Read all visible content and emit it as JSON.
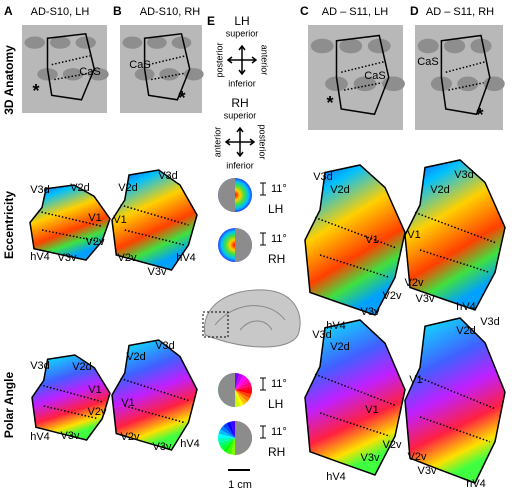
{
  "figure": {
    "row_labels": [
      "3D Anatomy",
      "Eccentricity",
      "Polar Angle"
    ],
    "panels": [
      {
        "letter": "A",
        "title": "AD-S10, LH",
        "sulcus": "CaS",
        "marker": "*",
        "eccentricity_regions": [
          "V3d",
          "V2d",
          "V1",
          "V2v",
          "V3v",
          "hV4"
        ],
        "polar_angle_regions": [
          "V3d",
          "V2d",
          "V1",
          "V2v",
          "V3v",
          "hV4"
        ]
      },
      {
        "letter": "B",
        "title": "AD-S10, RH",
        "sulcus": "CaS",
        "marker": "*",
        "eccentricity_regions": [
          "V3d",
          "V2d",
          "V1",
          "V2v",
          "V3v",
          "hV4"
        ],
        "polar_angle_regions": [
          "V3d",
          "V2d",
          "V1",
          "V2v",
          "V3v",
          "hV4"
        ]
      },
      {
        "letter": "C",
        "title": "AD – S11, LH",
        "sulcus": "CaS",
        "marker": "*",
        "eccentricity_regions": [
          "V3d",
          "V2d",
          "V1",
          "V2v",
          "V3v",
          "hV4"
        ],
        "polar_angle_regions": [
          "V3d",
          "V2d",
          "V1",
          "V2v",
          "V3v",
          "hV4"
        ]
      },
      {
        "letter": "D",
        "title": "AD – S11, RH",
        "sulcus": "CaS",
        "marker": "*",
        "eccentricity_regions": [
          "V3d",
          "V2d",
          "V1",
          "V2v",
          "V3v",
          "hV4"
        ],
        "polar_angle_regions": [
          "V3d",
          "V2d",
          "V1",
          "V2v",
          "V3v",
          "hV4"
        ]
      }
    ],
    "panel_e": {
      "letter": "E",
      "orientation": [
        {
          "hemisphere": "LH",
          "up": "superior",
          "left": "posterior",
          "right": "anterior",
          "down": "inferior"
        },
        {
          "hemisphere": "RH",
          "up": "superior",
          "left": "anterior",
          "right": "posterior",
          "down": "inferior"
        }
      ],
      "legend": [
        {
          "size": "11°",
          "hemisphere": "LH"
        },
        {
          "size": "11°",
          "hemisphere": "RH"
        },
        {
          "size": "11°",
          "hemisphere": "LH"
        },
        {
          "size": "11°",
          "hemisphere": "RH"
        }
      ],
      "scale_bar": "1 cm"
    }
  }
}
